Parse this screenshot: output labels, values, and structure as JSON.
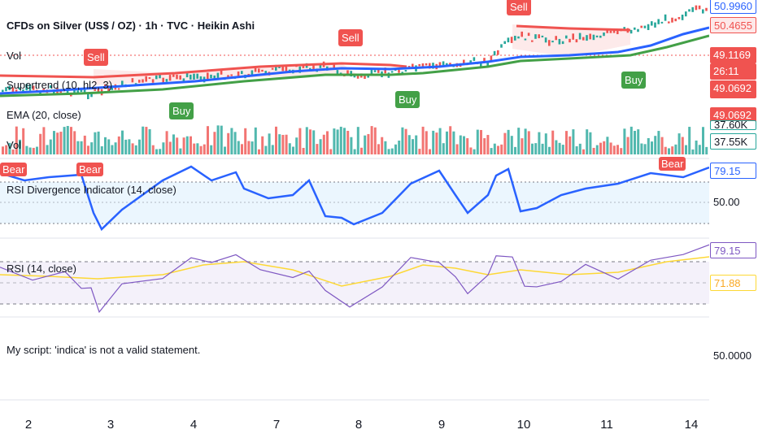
{
  "header": {
    "title": "CFDs on Silver (US$ / OZ) · 1h · TVC · Heikin Ashi",
    "ind_vol1": "Vol",
    "ind_supertrend": "Supertrend (10, hl2, 3)",
    "ind_ema": "EMA (20, close)",
    "ind_vol2": "Vol"
  },
  "panes": {
    "rsi_div_label": "RSI Divergence Indicator (14, close)",
    "rsi_label": "RSI (14, close)",
    "script_error": "My script: 'indica' is not a valid statement."
  },
  "price_axis": {
    "p1": "50.9960",
    "p2": "50.4655",
    "p3": "49.1169",
    "countdown": "26:11",
    "p4": "49.0692",
    "vol_top": "37.60K",
    "vol": "37.55K",
    "rsi_div_value": "79.15",
    "rsi_div_mid": "50.00",
    "rsi_value": "79.15",
    "rsi_ma_value": "71.88",
    "script_value": "50.0000"
  },
  "x_axis": [
    "2",
    "3",
    "4",
    "7",
    "8",
    "9",
    "10",
    "11",
    "14"
  ],
  "signals": {
    "sell": "Sell",
    "buy": "Buy",
    "bear": "Bear"
  },
  "colors": {
    "up": "#26a69a",
    "down": "#ef5350",
    "rsi_line": "#2962ff",
    "rsi_purple": "#7e57c2",
    "rsi_ma": "#fdd835",
    "ema_blue": "#2962ff",
    "st_green": "#43a047",
    "st_red": "#f05350"
  }
}
